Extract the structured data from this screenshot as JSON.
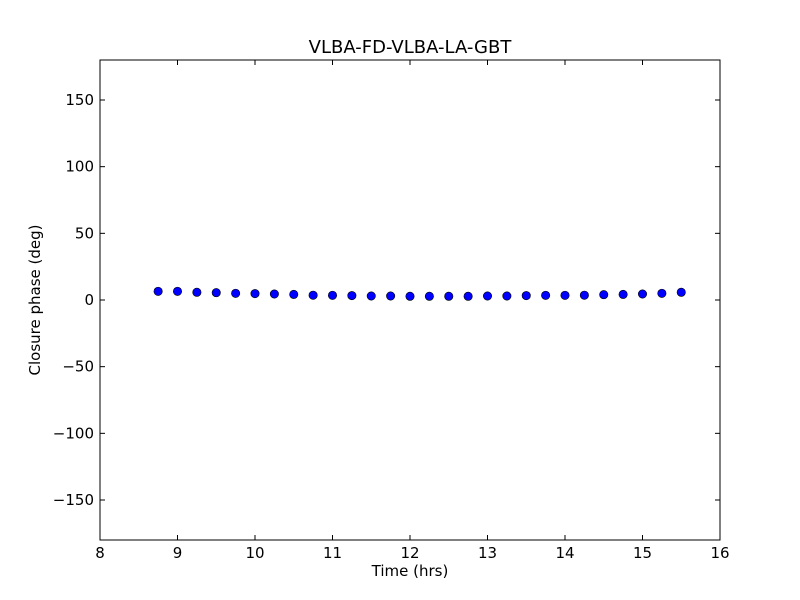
{
  "chart_data": {
    "type": "scatter",
    "title": "VLBA-FD-VLBA-LA-GBT",
    "xlabel": "Time (hrs)",
    "ylabel": "Closure phase (deg)",
    "xlim": [
      8,
      16
    ],
    "ylim": [
      -180,
      180
    ],
    "x_ticks": [
      8,
      9,
      10,
      11,
      12,
      13,
      14,
      15,
      16
    ],
    "x_tick_labels": [
      "8",
      "9",
      "10",
      "11",
      "12",
      "13",
      "14",
      "15",
      "16"
    ],
    "y_ticks": [
      -150,
      -100,
      -50,
      0,
      50,
      100,
      150
    ],
    "y_tick_labels": [
      "−150",
      "−100",
      "−50",
      "0",
      "50",
      "100",
      "150"
    ],
    "grid": false,
    "marker_color": "#0000ff",
    "marker_edge_color": "#000000",
    "series": [
      {
        "x": [
          8.75,
          9.0,
          9.25,
          9.5,
          9.75,
          10.0,
          10.25,
          10.5,
          10.75,
          11.0,
          11.25,
          11.5,
          11.75,
          12.0,
          12.25,
          12.5,
          12.75,
          13.0,
          13.25,
          13.5,
          13.75,
          14.0,
          14.25,
          14.5,
          14.75,
          15.0,
          15.25,
          15.5
        ],
        "y": [
          6.5,
          6.5,
          5.8,
          5.5,
          5.0,
          4.8,
          4.5,
          4.2,
          3.6,
          3.5,
          3.3,
          3.0,
          3.0,
          2.8,
          2.8,
          2.8,
          2.8,
          3.0,
          3.0,
          3.3,
          3.5,
          3.5,
          3.6,
          4.0,
          4.2,
          4.5,
          5.0,
          5.8
        ],
        "err": [
          2.2,
          1.5,
          1.2,
          1.0,
          1.0,
          1.0,
          1.0,
          1.0,
          1.0,
          1.0,
          1.0,
          1.0,
          1.0,
          1.0,
          1.0,
          1.0,
          1.0,
          1.0,
          1.0,
          1.0,
          1.0,
          1.0,
          1.0,
          1.0,
          1.0,
          1.0,
          1.0,
          1.0
        ]
      }
    ]
  }
}
